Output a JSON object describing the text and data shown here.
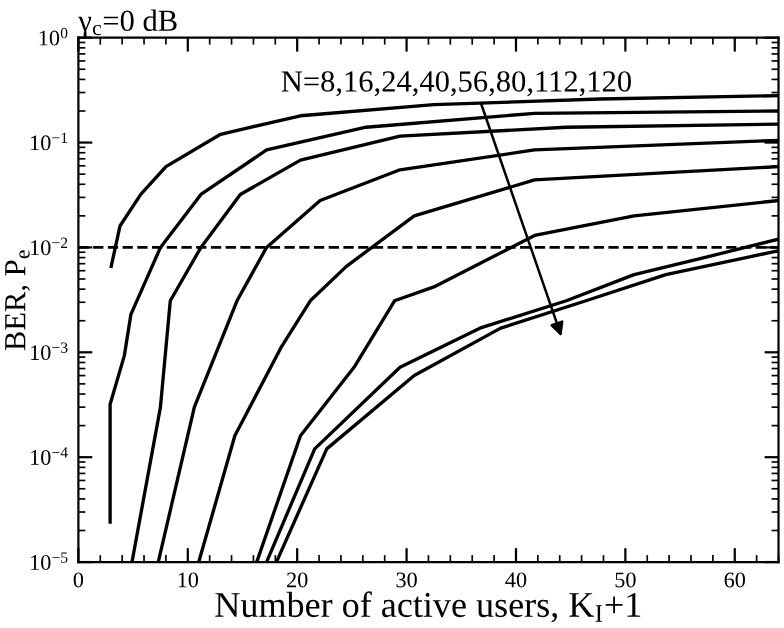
{
  "chart_data": {
    "type": "line",
    "title": "γ$_{c}$=0 dB",
    "xlabel": "Number of active users, K$_{I}$+1",
    "ylabel": "BER, P$_{e}$",
    "log": "y",
    "grid": false,
    "legend": false,
    "marker": "none",
    "line_style": "solid",
    "xlim": [
      0,
      64
    ],
    "xticks": [
      0,
      10,
      20,
      30,
      40,
      50,
      60
    ],
    "ylim": [
      1e-05,
      1
    ],
    "yticks": [
      {
        "value": 1e-05,
        "label": "10$^{−5}$"
      },
      {
        "value": 0.0001,
        "label": "10$^{−4}$"
      },
      {
        "value": 0.001,
        "label": "10$^{−3}$"
      },
      {
        "value": 0.01,
        "label": "10$^{−2}$"
      },
      {
        "value": 0.1,
        "label": "10$^{−1}$"
      },
      {
        "value": 1,
        "label": "10$^{0}$"
      }
    ],
    "series": [
      {
        "color": "#000000",
        "x": [
          3,
          3.8,
          5.7,
          8,
          13,
          20.3,
          32.5,
          47.7,
          64
        ],
        "values": [
          0.0066,
          0.016,
          0.032,
          0.059,
          0.12,
          0.18,
          0.23,
          0.26,
          0.28
        ]
      },
      {
        "color": "#000000",
        "x": [
          2.9,
          2.9,
          4.2,
          4.8,
          7.5,
          11.2,
          17.2,
          26.3,
          41.7,
          64
        ],
        "values": [
          2.4e-05,
          0.00032,
          0.00093,
          0.0023,
          0.01,
          0.032,
          0.085,
          0.14,
          0.19,
          0.2
        ]
      },
      {
        "color": "#000000",
        "x": [
          4.9,
          7.5,
          8.4,
          11.2,
          14.8,
          20.3,
          29.4,
          44.6,
          64
        ],
        "values": [
          1e-05,
          0.0003,
          0.0031,
          0.01,
          0.032,
          0.068,
          0.115,
          0.14,
          0.15
        ]
      },
      {
        "color": "#000000",
        "x": [
          7.3,
          10.6,
          14.5,
          17.2,
          22.1,
          29.4,
          41.7,
          64
        ],
        "values": [
          1e-05,
          0.0003,
          0.0031,
          0.01,
          0.028,
          0.055,
          0.085,
          0.105
        ]
      },
      {
        "color": "#000000",
        "x": [
          11,
          14.3,
          18.5,
          21.2,
          24.5,
          30.7,
          41.7,
          64
        ],
        "values": [
          1e-05,
          0.00016,
          0.0011,
          0.0031,
          0.0066,
          0.02,
          0.044,
          0.059
        ]
      },
      {
        "color": "#000000",
        "x": [
          16.3,
          20.3,
          25.2,
          28.9,
          32.5,
          41.7,
          50.8,
          64
        ],
        "values": [
          1e-05,
          0.00016,
          0.00072,
          0.0031,
          0.0042,
          0.013,
          0.02,
          0.028
        ]
      },
      {
        "color": "#000000",
        "x": [
          17.2,
          21.6,
          29.4,
          36.7,
          44.6,
          50.8,
          57.4,
          64
        ],
        "values": [
          1e-05,
          0.00012,
          0.00072,
          0.0017,
          0.0031,
          0.0055,
          0.0081,
          0.012
        ]
      },
      {
        "color": "#000000",
        "x": [
          18.1,
          22.7,
          30.7,
          38.6,
          46.4,
          53.7,
          64
        ],
        "values": [
          1e-05,
          0.00012,
          0.0006,
          0.0017,
          0.0031,
          0.0055,
          0.0093
        ]
      }
    ],
    "ref_lines": [
      {
        "axis": "y",
        "value": 0.01,
        "color": "#000000",
        "line_style": "dashed"
      }
    ],
    "annotations": [
      "N=8,16,24,40,56,80,112,120"
    ]
  }
}
